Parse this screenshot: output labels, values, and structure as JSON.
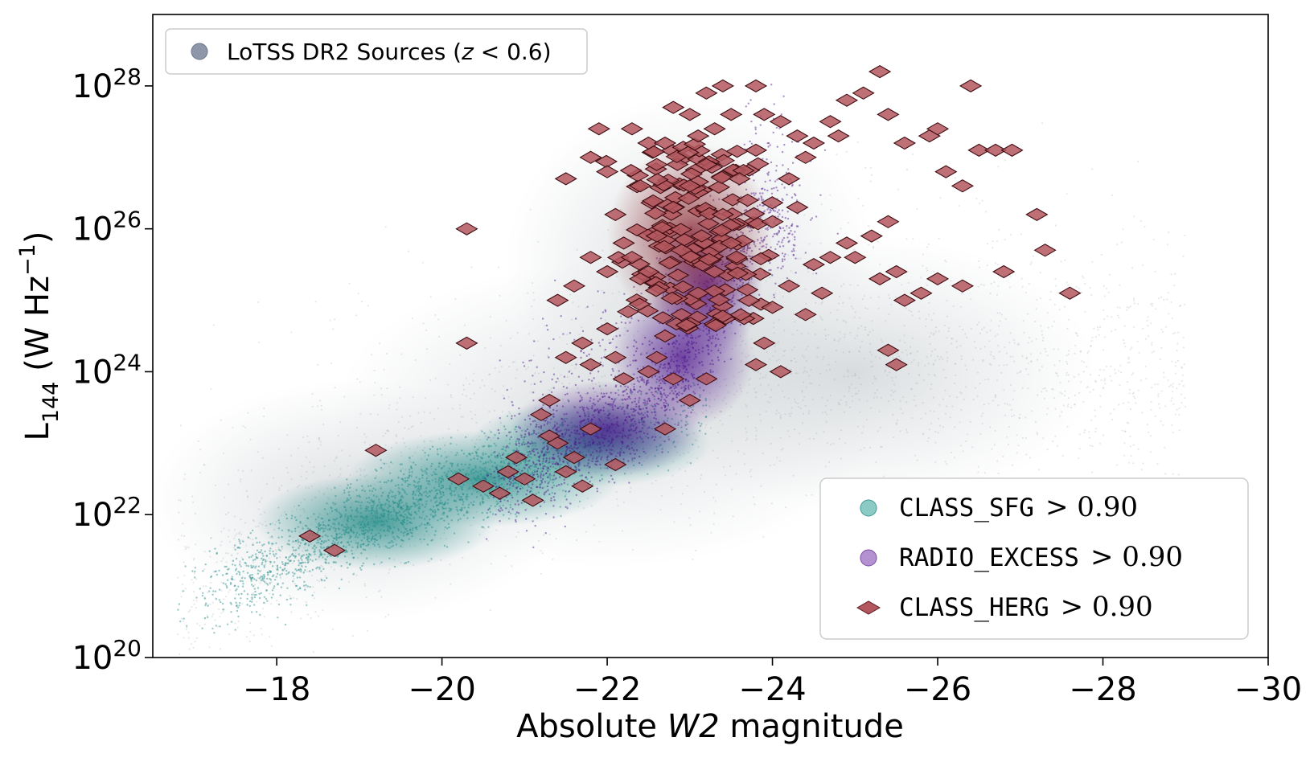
{
  "chart_data": {
    "type": "scatter",
    "title": "",
    "xlabel": "Absolute W2 magnitude",
    "xlabel_parts": {
      "before": "Absolute ",
      "italic": "W2",
      "after": " magnitude"
    },
    "ylabel": "L144 (W Hz−1)",
    "ylabel_parts": {
      "base": "L",
      "sub": "144",
      "mid": " (W Hz",
      "sup": "−1",
      "end": ")"
    },
    "x_axis": {
      "range": [
        -16.5,
        -30
      ],
      "inverted": true,
      "ticks": [
        -18,
        -20,
        -22,
        -24,
        -26,
        -28,
        -30
      ],
      "tick_labels": [
        "−18",
        "−20",
        "−22",
        "−24",
        "−26",
        "−28",
        "−30"
      ]
    },
    "y_axis": {
      "scale": "log",
      "range_log10": [
        20,
        29
      ],
      "ticks_log10": [
        20,
        22,
        24,
        26,
        28
      ],
      "tick_base": "10",
      "tick_exponents": [
        "20",
        "22",
        "24",
        "26",
        "28"
      ]
    },
    "grid": false,
    "legend_top": {
      "placement": "top-left",
      "entries": [
        {
          "label_before": "LoTSS DR2 Sources (",
          "label_italic": "z",
          "label_after": " < 0.6)",
          "color": "#8e97aa",
          "marker": "circle"
        }
      ]
    },
    "legend_bottom": {
      "placement": "bottom-right",
      "entries": [
        {
          "code": "CLASS_SFG",
          "condition": "> 0.90",
          "color": "#5ab3ad",
          "marker": "circle"
        },
        {
          "code": "RADIO_EXCESS",
          "condition": "> 0.90",
          "color": "#9b6cc0",
          "marker": "circle"
        },
        {
          "code": "CLASS_HERG",
          "condition": "> 0.90",
          "color": "#b3575e",
          "marker": "diamond"
        }
      ]
    },
    "series": [
      {
        "name": "LoTSS DR2 Sources (z < 0.6)",
        "color": "#9aa3ab",
        "description": "dense background cloud",
        "trend": [
          [
            -17,
            20.9
          ],
          [
            -18,
            21.5
          ],
          [
            -19,
            22.2
          ],
          [
            -20,
            22.6
          ],
          [
            -21,
            23.0
          ],
          [
            -22,
            23.4
          ],
          [
            -23,
            23.7
          ],
          [
            -24,
            23.9
          ],
          [
            -25,
            24.0
          ],
          [
            -26,
            24.0
          ],
          [
            -27,
            24.0
          ]
        ]
      },
      {
        "name": "CLASS_SFG > 0.90",
        "color": "#1f8b87",
        "trend": [
          [
            -16.7,
            20.7
          ],
          [
            -17.5,
            21.0
          ],
          [
            -18.5,
            21.6
          ],
          [
            -19.5,
            22.1
          ],
          [
            -20.5,
            22.5
          ],
          [
            -21.5,
            22.9
          ],
          [
            -22.5,
            23.3
          ],
          [
            -23.0,
            23.5
          ]
        ]
      },
      {
        "name": "RADIO_EXCESS > 0.90",
        "color": "#4b0f8c",
        "trend": [
          [
            -20.5,
            22.4
          ],
          [
            -21.5,
            22.9
          ],
          [
            -22.5,
            23.6
          ],
          [
            -23.2,
            24.4
          ],
          [
            -23.5,
            25.2
          ],
          [
            -23.8,
            26.0
          ]
        ]
      },
      {
        "name": "CLASS_HERG > 0.90",
        "color": "#9e2c34",
        "points": [
          [
            -18.4,
            21.7
          ],
          [
            -18.7,
            21.5
          ],
          [
            -19.2,
            22.9
          ],
          [
            -20.2,
            22.5
          ],
          [
            -20.5,
            22.4
          ],
          [
            -20.7,
            22.3
          ],
          [
            -20.3,
            24.4
          ],
          [
            -20.3,
            26.0
          ],
          [
            -20.8,
            22.6
          ],
          [
            -20.9,
            22.8
          ],
          [
            -21.0,
            22.5
          ],
          [
            -21.2,
            23.4
          ],
          [
            -21.3,
            23.1
          ],
          [
            -21.1,
            22.2
          ],
          [
            -21.4,
            23.0
          ],
          [
            -21.5,
            22.6
          ],
          [
            -21.6,
            22.8
          ],
          [
            -21.7,
            22.4
          ],
          [
            -21.8,
            23.2
          ],
          [
            -21.3,
            23.6
          ],
          [
            -21.5,
            24.2
          ],
          [
            -21.7,
            24.4
          ],
          [
            -21.8,
            24.1
          ],
          [
            -22.0,
            24.6
          ],
          [
            -22.1,
            24.2
          ],
          [
            -22.2,
            23.9
          ],
          [
            -22.1,
            22.7
          ],
          [
            -21.4,
            25.0
          ],
          [
            -21.6,
            25.2
          ],
          [
            -21.8,
            25.6
          ],
          [
            -22.0,
            25.4
          ],
          [
            -22.2,
            25.8
          ],
          [
            -21.5,
            26.7
          ],
          [
            -21.8,
            27.0
          ],
          [
            -21.9,
            27.4
          ],
          [
            -22.0,
            26.8
          ],
          [
            -22.3,
            27.4
          ],
          [
            -22.5,
            27.2
          ],
          [
            -22.4,
            26.6
          ],
          [
            -22.6,
            26.9
          ],
          [
            -22.7,
            27.2
          ],
          [
            -22.8,
            27.7
          ],
          [
            -23.0,
            27.6
          ],
          [
            -23.1,
            27.3
          ],
          [
            -23.2,
            27.9
          ],
          [
            -23.4,
            28.0
          ],
          [
            -23.3,
            27.4
          ],
          [
            -23.5,
            27.6
          ],
          [
            -23.8,
            28.0
          ],
          [
            -23.9,
            27.6
          ],
          [
            -24.1,
            27.5
          ],
          [
            -24.3,
            27.3
          ],
          [
            -24.5,
            27.2
          ],
          [
            -24.7,
            27.5
          ],
          [
            -24.9,
            27.8
          ],
          [
            -24.8,
            27.3
          ],
          [
            -25.1,
            27.9
          ],
          [
            -25.3,
            28.2
          ],
          [
            -25.4,
            27.6
          ],
          [
            -25.6,
            27.2
          ],
          [
            -25.9,
            27.3
          ],
          [
            -26.0,
            27.4
          ],
          [
            -26.4,
            28.0
          ],
          [
            -26.1,
            26.8
          ],
          [
            -26.3,
            26.6
          ],
          [
            -26.5,
            27.1
          ],
          [
            -26.7,
            27.1
          ],
          [
            -26.9,
            27.1
          ],
          [
            -27.2,
            26.2
          ],
          [
            -27.3,
            25.7
          ],
          [
            -27.6,
            25.1
          ],
          [
            -26.8,
            25.4
          ],
          [
            -26.3,
            25.2
          ],
          [
            -26.0,
            25.3
          ],
          [
            -25.8,
            25.1
          ],
          [
            -25.6,
            25.0
          ],
          [
            -25.5,
            25.4
          ],
          [
            -25.3,
            25.3
          ],
          [
            -25.0,
            25.6
          ],
          [
            -25.2,
            25.9
          ],
          [
            -25.4,
            26.1
          ],
          [
            -24.9,
            25.8
          ],
          [
            -24.7,
            25.6
          ],
          [
            -24.6,
            25.1
          ],
          [
            -24.4,
            24.8
          ],
          [
            -24.2,
            25.2
          ],
          [
            -24.0,
            24.9
          ],
          [
            -23.9,
            24.4
          ],
          [
            -24.1,
            24.0
          ],
          [
            -23.8,
            24.1
          ],
          [
            -25.4,
            24.3
          ],
          [
            -25.5,
            24.1
          ],
          [
            -24.5,
            25.5
          ],
          [
            -24.3,
            26.3
          ],
          [
            -24.0,
            26.1
          ],
          [
            -23.7,
            26.4
          ],
          [
            -23.5,
            25.8
          ],
          [
            -23.3,
            25.4
          ],
          [
            -23.1,
            25.1
          ],
          [
            -22.9,
            24.8
          ],
          [
            -22.7,
            24.5
          ],
          [
            -22.6,
            24.2
          ],
          [
            -22.8,
            23.9
          ],
          [
            -23.0,
            23.6
          ],
          [
            -22.7,
            23.2
          ],
          [
            -23.2,
            23.9
          ],
          [
            -22.5,
            24.0
          ],
          [
            -22.4,
            25.3
          ],
          [
            -22.3,
            25.6
          ],
          [
            -22.6,
            25.9
          ],
          [
            -22.8,
            26.3
          ],
          [
            -23.0,
            26.6
          ],
          [
            -23.2,
            26.9
          ],
          [
            -23.4,
            26.2
          ],
          [
            -23.6,
            26.7
          ],
          [
            -23.8,
            27.1
          ],
          [
            -24.2,
            26.7
          ],
          [
            -24.4,
            27.0
          ],
          [
            -22.1,
            26.2
          ],
          [
            -22.9,
            25.7
          ]
        ],
        "dense_cluster": {
          "x_range": [
            -22.0,
            -24.0
          ],
          "y_log10_range": [
            24.6,
            27.2
          ]
        }
      }
    ]
  }
}
